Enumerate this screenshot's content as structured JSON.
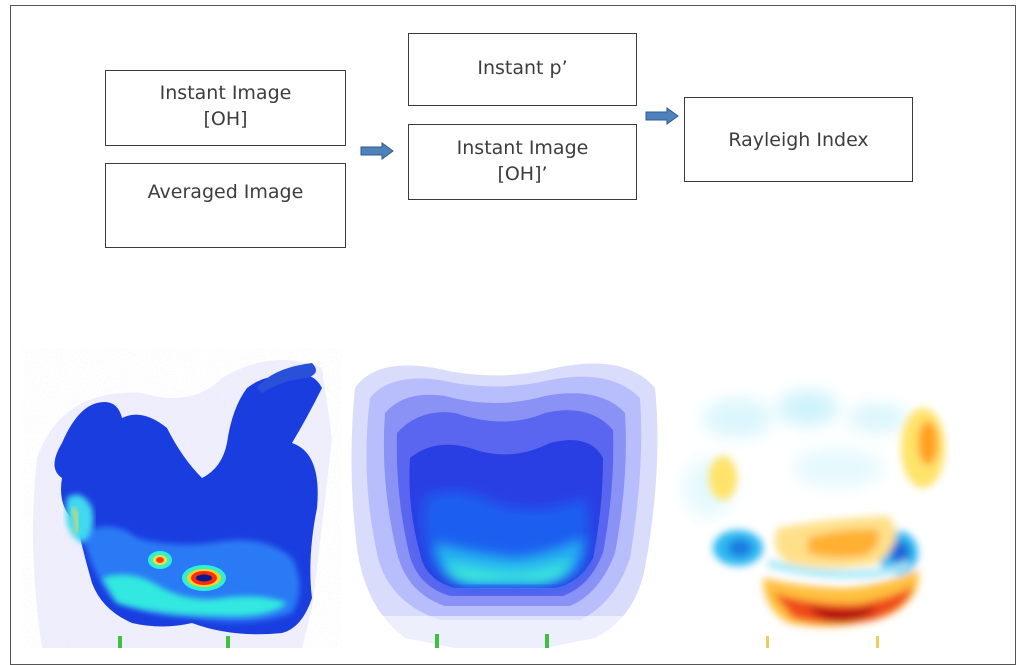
{
  "boxes": {
    "instant_image": {
      "line1": "Instant Image",
      "line2": "[OH]"
    },
    "averaged_image": {
      "label": "Averaged Image"
    },
    "instant_p": {
      "label": "Instant p’"
    },
    "instant_image_fluct": {
      "line1": "Instant Image",
      "line2": "[OH]’"
    },
    "rayleigh_index": {
      "label": "Rayleigh Index"
    }
  },
  "colors": {
    "arrow_fill": "#4f81bd",
    "arrow_stroke": "#2c5a8c",
    "box_border": "#3a3a3a",
    "text": "#3d3d3d"
  },
  "panels": [
    {
      "name": "instantaneous OH image",
      "colormap": "jet"
    },
    {
      "name": "averaged OH image",
      "colormap": "blue-jet"
    },
    {
      "name": "Rayleigh index map",
      "colormap": "diverging cyan-red"
    }
  ]
}
